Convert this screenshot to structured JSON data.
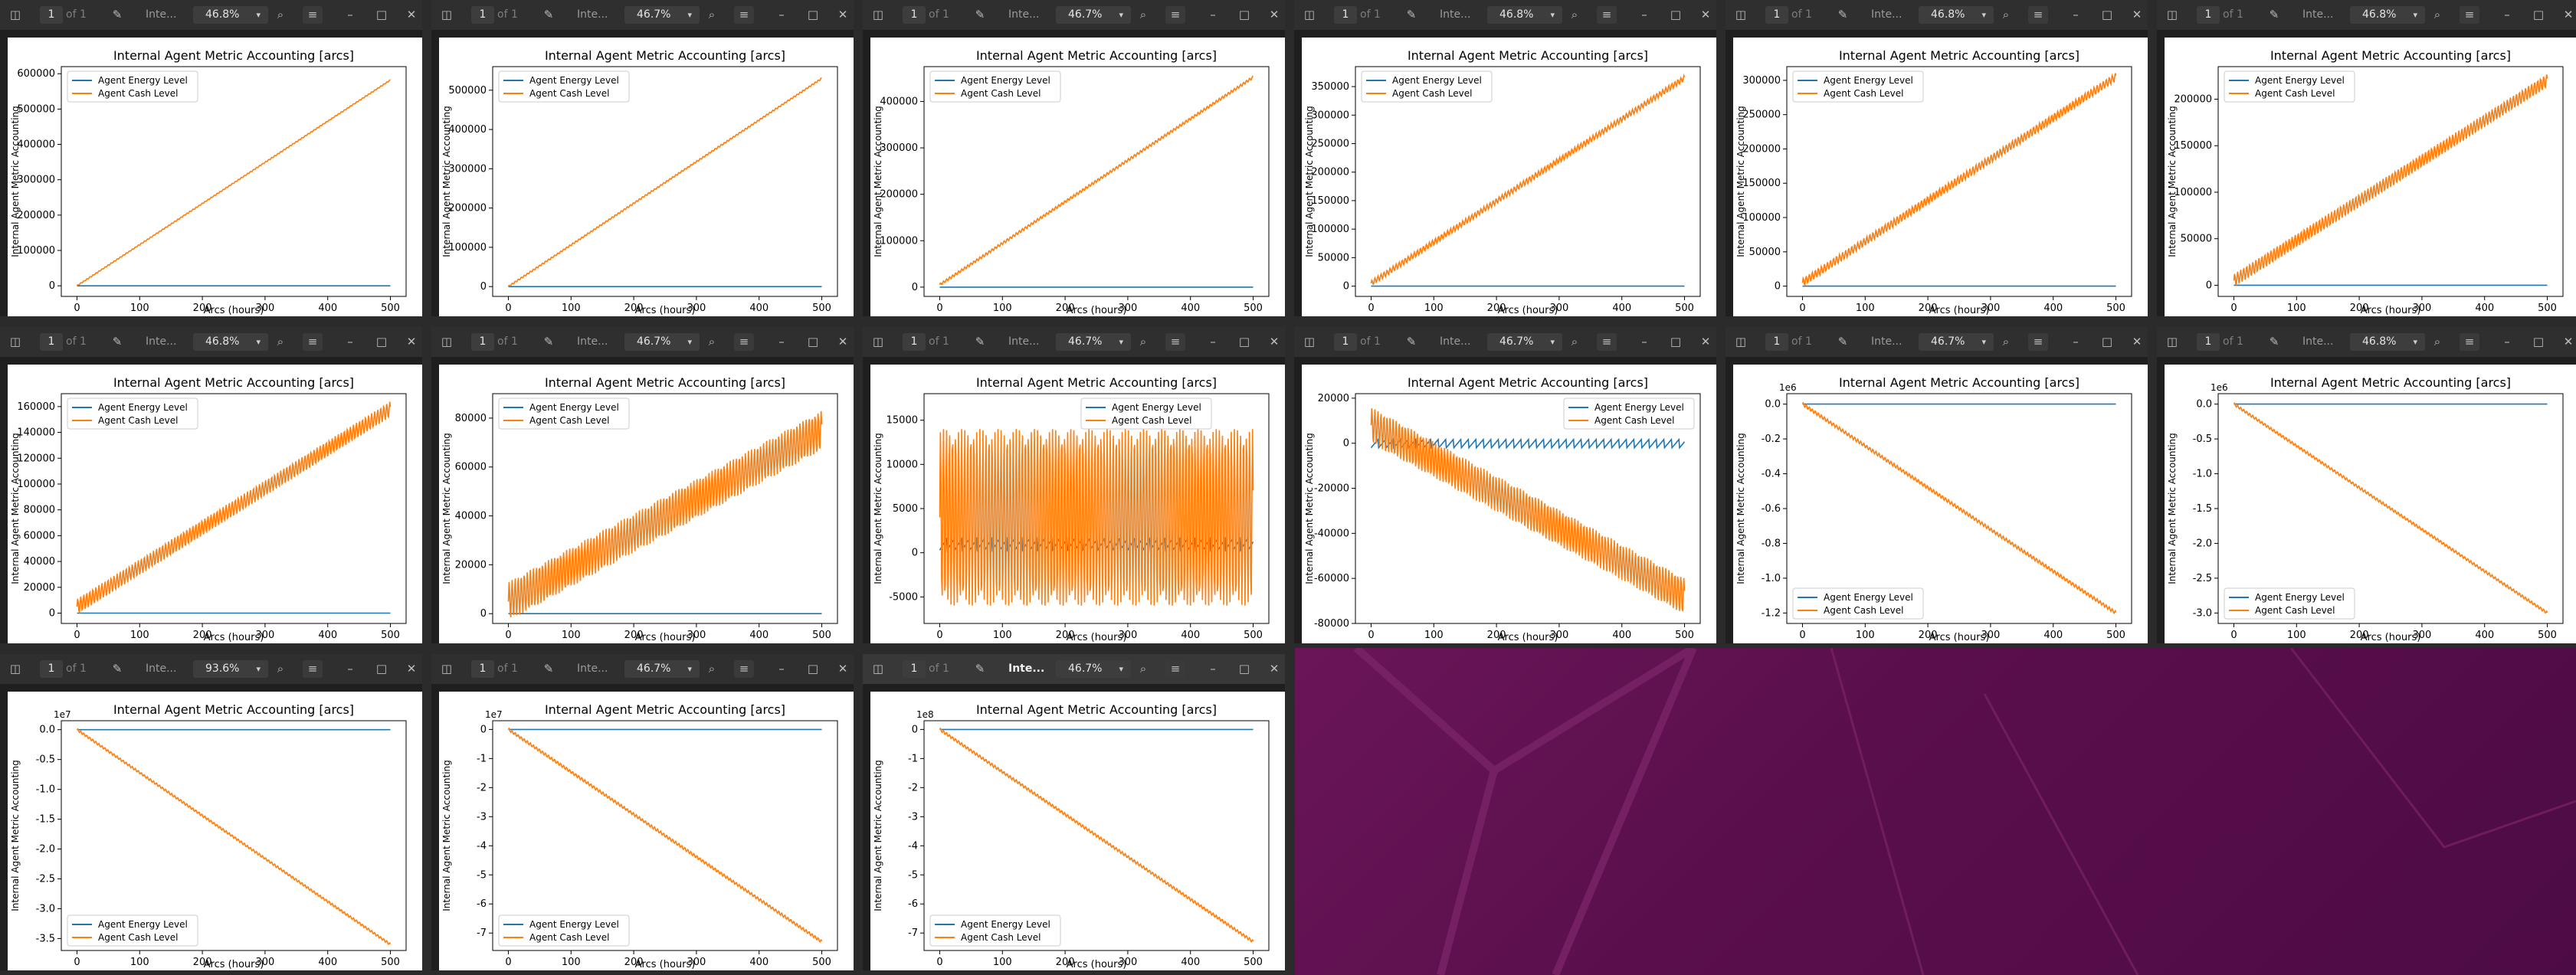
{
  "desktop": {
    "background": "#5c1050"
  },
  "toolbar_icons": {
    "sidebar": "sidebar-toggle-icon",
    "annotate": "annotate-pen-icon",
    "search": "search-icon",
    "menu": "hamburger-menu-icon",
    "minimize": "minimize-icon",
    "maximize": "maximize-icon",
    "close": "close-icon"
  },
  "colors": {
    "energy": "#1f77b4",
    "cash": "#ff7f0e"
  },
  "windows": [
    {
      "page": "1",
      "of": "of 1",
      "title": "Inte...",
      "zoom": "46.8%"
    },
    {
      "page": "1",
      "of": "of 1",
      "title": "Inte...",
      "zoom": "46.7%"
    },
    {
      "page": "1",
      "of": "of 1",
      "title": "Inte...",
      "zoom": "46.7%"
    },
    {
      "page": "1",
      "of": "of 1",
      "title": "Inte...",
      "zoom": "46.8%"
    },
    {
      "page": "1",
      "of": "of 1",
      "title": "Inte...",
      "zoom": "46.8%"
    },
    {
      "page": "1",
      "of": "of 1",
      "title": "Inte...",
      "zoom": "46.8%"
    },
    {
      "page": "1",
      "of": "of 1",
      "title": "Inte...",
      "zoom": "46.8%"
    },
    {
      "page": "1",
      "of": "of 1",
      "title": "Inte...",
      "zoom": "46.7%"
    },
    {
      "page": "1",
      "of": "of 1",
      "title": "Inte...",
      "zoom": "46.7%"
    },
    {
      "page": "1",
      "of": "of 1",
      "title": "Inte...",
      "zoom": "46.7%"
    },
    {
      "page": "1",
      "of": "of 1",
      "title": "Inte...",
      "zoom": "46.7%"
    },
    {
      "page": "1",
      "of": "of 1",
      "title": "Inte...",
      "zoom": "46.8%"
    },
    {
      "page": "1",
      "of": "of 1",
      "title": "Inte...",
      "zoom": "93.6%"
    },
    {
      "page": "1",
      "of": "of 1",
      "title": "Inte...",
      "zoom": "46.7%"
    },
    {
      "page": "1",
      "of": "of 1",
      "title": "Inte...",
      "zoom": "46.7%"
    }
  ],
  "chart_data": [
    {
      "type": "line",
      "title": "Internal Agent Metric Accounting [arcs]",
      "xlabel": "Arcs (hours)",
      "ylabel": "Internal Agent Metric Accounting",
      "xticks": [
        "0",
        "100",
        "200",
        "300",
        "400",
        "500"
      ],
      "yticks": [
        "0",
        "100000",
        "200000",
        "300000",
        "400000",
        "500000",
        "600000"
      ],
      "ylim": [
        -30000,
        620000
      ],
      "offset": "",
      "legend": "upper left",
      "legend_labels": [
        "Agent Energy Level",
        "Agent Cash Level"
      ],
      "series": [
        {
          "name": "Agent Energy Level",
          "shape": "flat",
          "values": [
            0,
            0
          ]
        },
        {
          "name": "Agent Cash Level",
          "shape": "linear",
          "values": [
            0,
            582000
          ],
          "wiggle": 1500
        }
      ]
    },
    {
      "type": "line",
      "title": "Internal Agent Metric Accounting [arcs]",
      "xlabel": "Arcs (hours)",
      "ylabel": "Internal Agent Metric Accounting",
      "xticks": [
        "0",
        "100",
        "200",
        "300",
        "400",
        "500"
      ],
      "yticks": [
        "0",
        "100000",
        "200000",
        "300000",
        "400000",
        "500000"
      ],
      "ylim": [
        -25000,
        560000
      ],
      "offset": "",
      "legend": "upper left",
      "legend_labels": [
        "Agent Energy Level",
        "Agent Cash Level"
      ],
      "series": [
        {
          "name": "Agent Energy Level",
          "shape": "flat",
          "values": [
            0,
            0
          ]
        },
        {
          "name": "Agent Cash Level",
          "shape": "linear",
          "values": [
            0,
            530000
          ],
          "wiggle": 2000
        }
      ]
    },
    {
      "type": "line",
      "title": "Internal Agent Metric Accounting [arcs]",
      "xlabel": "Arcs (hours)",
      "ylabel": "Internal Agent Metric Accounting",
      "xticks": [
        "0",
        "100",
        "200",
        "300",
        "400",
        "500"
      ],
      "yticks": [
        "0",
        "100000",
        "200000",
        "300000",
        "400000"
      ],
      "ylim": [
        -20000,
        475000
      ],
      "offset": "",
      "legend": "upper left",
      "legend_labels": [
        "Agent Energy Level",
        "Agent Cash Level"
      ],
      "series": [
        {
          "name": "Agent Energy Level",
          "shape": "flat",
          "values": [
            0,
            0
          ]
        },
        {
          "name": "Agent Cash Level",
          "shape": "linear",
          "values": [
            5000,
            452000
          ],
          "wiggle": 3000
        }
      ]
    },
    {
      "type": "line",
      "title": "Internal Agent Metric Accounting [arcs]",
      "xlabel": "Arcs (hours)",
      "ylabel": "Internal Agent Metric Accounting",
      "xticks": [
        "0",
        "100",
        "200",
        "300",
        "400",
        "500"
      ],
      "yticks": [
        "0",
        "50000",
        "100000",
        "150000",
        "200000",
        "250000",
        "300000",
        "350000"
      ],
      "ylim": [
        -18000,
        385000
      ],
      "offset": "",
      "legend": "upper left",
      "legend_labels": [
        "Agent Energy Level",
        "Agent Cash Level"
      ],
      "series": [
        {
          "name": "Agent Energy Level",
          "shape": "flat",
          "values": [
            0,
            0
          ]
        },
        {
          "name": "Agent Cash Level",
          "shape": "linear",
          "values": [
            5000,
            365000
          ],
          "wiggle": 5000
        }
      ]
    },
    {
      "type": "line",
      "title": "Internal Agent Metric Accounting [arcs]",
      "xlabel": "Arcs (hours)",
      "ylabel": "Internal Agent Metric Accounting",
      "xticks": [
        "0",
        "100",
        "200",
        "300",
        "400",
        "500"
      ],
      "yticks": [
        "0",
        "50000",
        "100000",
        "150000",
        "200000",
        "250000",
        "300000"
      ],
      "ylim": [
        -15000,
        320000
      ],
      "offset": "",
      "legend": "upper left",
      "legend_labels": [
        "Agent Energy Level",
        "Agent Cash Level"
      ],
      "series": [
        {
          "name": "Agent Energy Level",
          "shape": "flat",
          "values": [
            0,
            0
          ]
        },
        {
          "name": "Agent Cash Level",
          "shape": "linear",
          "values": [
            5000,
            305000
          ],
          "wiggle": 6000
        }
      ]
    },
    {
      "type": "line",
      "title": "Internal Agent Metric Accounting [arcs]",
      "xlabel": "Arcs (hours)",
      "ylabel": "Internal Agent Metric Accounting",
      "xticks": [
        "0",
        "100",
        "200",
        "300",
        "400",
        "500"
      ],
      "yticks": [
        "0",
        "50000",
        "100000",
        "150000",
        "200000"
      ],
      "ylim": [
        -12000,
        235000
      ],
      "offset": "",
      "legend": "upper left",
      "legend_labels": [
        "Agent Energy Level",
        "Agent Cash Level"
      ],
      "series": [
        {
          "name": "Agent Energy Level",
          "shape": "flat",
          "values": [
            0,
            0
          ]
        },
        {
          "name": "Agent Cash Level",
          "shape": "linear",
          "values": [
            5000,
            220000
          ],
          "wiggle": 7000
        }
      ]
    },
    {
      "type": "line",
      "title": "Internal Agent Metric Accounting [arcs]",
      "xlabel": "Arcs (hours)",
      "ylabel": "Internal Agent Metric Accounting",
      "xticks": [
        "0",
        "100",
        "200",
        "300",
        "400",
        "500"
      ],
      "yticks": [
        "0",
        "20000",
        "40000",
        "60000",
        "80000",
        "100000",
        "120000",
        "140000",
        "160000"
      ],
      "ylim": [
        -8000,
        170000
      ],
      "offset": "",
      "legend": "upper left",
      "legend_labels": [
        "Agent Energy Level",
        "Agent Cash Level"
      ],
      "series": [
        {
          "name": "Agent Energy Level",
          "shape": "flat",
          "values": [
            0,
            0
          ]
        },
        {
          "name": "Agent Cash Level",
          "shape": "linear",
          "values": [
            5000,
            158000
          ],
          "wiggle": 6000
        }
      ]
    },
    {
      "type": "line",
      "title": "Internal Agent Metric Accounting [arcs]",
      "xlabel": "Arcs (hours)",
      "ylabel": "Internal Agent Metric Accounting",
      "xticks": [
        "0",
        "100",
        "200",
        "300",
        "400",
        "500"
      ],
      "yticks": [
        "0",
        "20000",
        "40000",
        "60000",
        "80000"
      ],
      "ylim": [
        -4000,
        90000
      ],
      "offset": "",
      "legend": "upper left",
      "legend_labels": [
        "Agent Energy Level",
        "Agent Cash Level"
      ],
      "series": [
        {
          "name": "Agent Energy Level",
          "shape": "flat",
          "values": [
            0,
            0
          ]
        },
        {
          "name": "Agent Cash Level",
          "shape": "linear",
          "values": [
            5000,
            75000
          ],
          "wiggle": 8000
        }
      ]
    },
    {
      "type": "line",
      "title": "Internal Agent Metric Accounting [arcs]",
      "xlabel": "Arcs (hours)",
      "ylabel": "Internal Agent Metric Accounting",
      "xticks": [
        "0",
        "100",
        "200",
        "300",
        "400",
        "500"
      ],
      "yticks": [
        "-5000",
        "0",
        "5000",
        "10000",
        "15000"
      ],
      "ylim": [
        -8000,
        18000
      ],
      "offset": "",
      "legend": "upper center",
      "legend_labels": [
        "Agent Energy Level",
        "Agent Cash Level"
      ],
      "series": [
        {
          "name": "Agent Energy Level",
          "shape": "saw",
          "values": [
            1000,
            1000
          ],
          "wiggle": 700
        },
        {
          "name": "Agent Cash Level",
          "shape": "linear",
          "values": [
            4000,
            4000
          ],
          "wiggle": 10000
        }
      ]
    },
    {
      "type": "line",
      "title": "Internal Agent Metric Accounting [arcs]",
      "xlabel": "Arcs (hours)",
      "ylabel": "Internal Agent Metric Accounting",
      "xticks": [
        "0",
        "100",
        "200",
        "300",
        "400",
        "500"
      ],
      "yticks": [
        "-80000",
        "-60000",
        "-40000",
        "-20000",
        "0",
        "20000"
      ],
      "ylim": [
        -80000,
        22000
      ],
      "offset": "",
      "legend": "upper right",
      "legend_labels": [
        "Agent Energy Level",
        "Agent Cash Level"
      ],
      "series": [
        {
          "name": "Agent Energy Level",
          "shape": "saw",
          "values": [
            0,
            0
          ],
          "wiggle": 2000
        },
        {
          "name": "Agent Cash Level",
          "shape": "linear",
          "values": [
            8000,
            -68000
          ],
          "wiggle": 8000
        }
      ]
    },
    {
      "type": "line",
      "title": "Internal Agent Metric Accounting [arcs]",
      "xlabel": "Arcs (hours)",
      "ylabel": "Internal Agent Metric Accounting",
      "xticks": [
        "0",
        "100",
        "200",
        "300",
        "400",
        "500"
      ],
      "yticks": [
        "0.0",
        "-0.2",
        "-0.4",
        "-0.6",
        "-0.8",
        "-1.0",
        "-1.2"
      ],
      "ylim": [
        -1.26,
        0.06
      ],
      "offset": "1e6",
      "legend": "lower left",
      "legend_labels": [
        "Agent Energy Level",
        "Agent Cash Level"
      ],
      "series": [
        {
          "name": "Agent Energy Level",
          "shape": "flat",
          "values": [
            0,
            0
          ]
        },
        {
          "name": "Agent Cash Level",
          "shape": "linear",
          "values": [
            0,
            -1.2
          ],
          "wiggle": 0.01
        }
      ]
    },
    {
      "type": "line",
      "title": "Internal Agent Metric Accounting [arcs]",
      "xlabel": "Arcs (hours)",
      "ylabel": "Internal Agent Metric Accounting",
      "xticks": [
        "0",
        "100",
        "200",
        "300",
        "400",
        "500"
      ],
      "yticks": [
        "0.0",
        "-0.5",
        "-1.0",
        "-1.5",
        "-2.0",
        "-2.5",
        "-3.0"
      ],
      "ylim": [
        -3.15,
        0.15
      ],
      "offset": "1e6",
      "legend": "lower left",
      "legend_labels": [
        "Agent Energy Level",
        "Agent Cash Level"
      ],
      "series": [
        {
          "name": "Agent Energy Level",
          "shape": "flat",
          "values": [
            0,
            0
          ]
        },
        {
          "name": "Agent Cash Level",
          "shape": "linear",
          "values": [
            0,
            -3.0
          ],
          "wiggle": 0.02
        }
      ]
    },
    {
      "type": "line",
      "title": "Internal Agent Metric Accounting [arcs]",
      "xlabel": "Arcs (hours)",
      "ylabel": "Internal Agent Metric Accounting",
      "xticks": [
        "0",
        "100",
        "200",
        "300",
        "400",
        "500"
      ],
      "yticks": [
        "0.0",
        "-0.5",
        "-1.0",
        "-1.5",
        "-2.0",
        "-2.5",
        "-3.0",
        "-3.5"
      ],
      "ylim": [
        -3.7,
        0.15
      ],
      "offset": "1e7",
      "legend": "lower left",
      "legend_labels": [
        "Agent Energy Level",
        "Agent Cash Level"
      ],
      "series": [
        {
          "name": "Agent Energy Level",
          "shape": "flat",
          "values": [
            0,
            0
          ]
        },
        {
          "name": "Agent Cash Level",
          "shape": "linear",
          "values": [
            0,
            -3.6
          ],
          "wiggle": 0.02
        }
      ]
    },
    {
      "type": "line",
      "title": "Internal Agent Metric Accounting [arcs]",
      "xlabel": "Arcs (hours)",
      "ylabel": "Internal Agent Metric Accounting",
      "xticks": [
        "0",
        "100",
        "200",
        "300",
        "400",
        "500"
      ],
      "yticks": [
        "0",
        "-1",
        "-2",
        "-3",
        "-4",
        "-5",
        "-6",
        "-7"
      ],
      "ylim": [
        -7.6,
        0.3
      ],
      "offset": "1e7",
      "legend": "lower left",
      "legend_labels": [
        "Agent Energy Level",
        "Agent Cash Level"
      ],
      "series": [
        {
          "name": "Agent Energy Level",
          "shape": "flat",
          "values": [
            0,
            0
          ]
        },
        {
          "name": "Agent Cash Level",
          "shape": "linear",
          "values": [
            0,
            -7.3
          ],
          "wiggle": 0.05
        }
      ]
    },
    {
      "type": "line",
      "title": "Internal Agent Metric Accounting [arcs]",
      "xlabel": "Arcs (hours)",
      "ylabel": "Internal Agent Metric Accounting",
      "xticks": [
        "0",
        "100",
        "200",
        "300",
        "400",
        "500"
      ],
      "yticks": [
        "0",
        "-1",
        "-2",
        "-3",
        "-4",
        "-5",
        "-6",
        "-7"
      ],
      "ylim": [
        -7.6,
        0.3
      ],
      "offset": "1e8",
      "legend": "lower left",
      "legend_labels": [
        "Agent Energy Level",
        "Agent Cash Level"
      ],
      "series": [
        {
          "name": "Agent Energy Level",
          "shape": "flat",
          "values": [
            0,
            0
          ]
        },
        {
          "name": "Agent Cash Level",
          "shape": "linear",
          "values": [
            0,
            -7.3
          ],
          "wiggle": 0.05
        }
      ]
    }
  ]
}
